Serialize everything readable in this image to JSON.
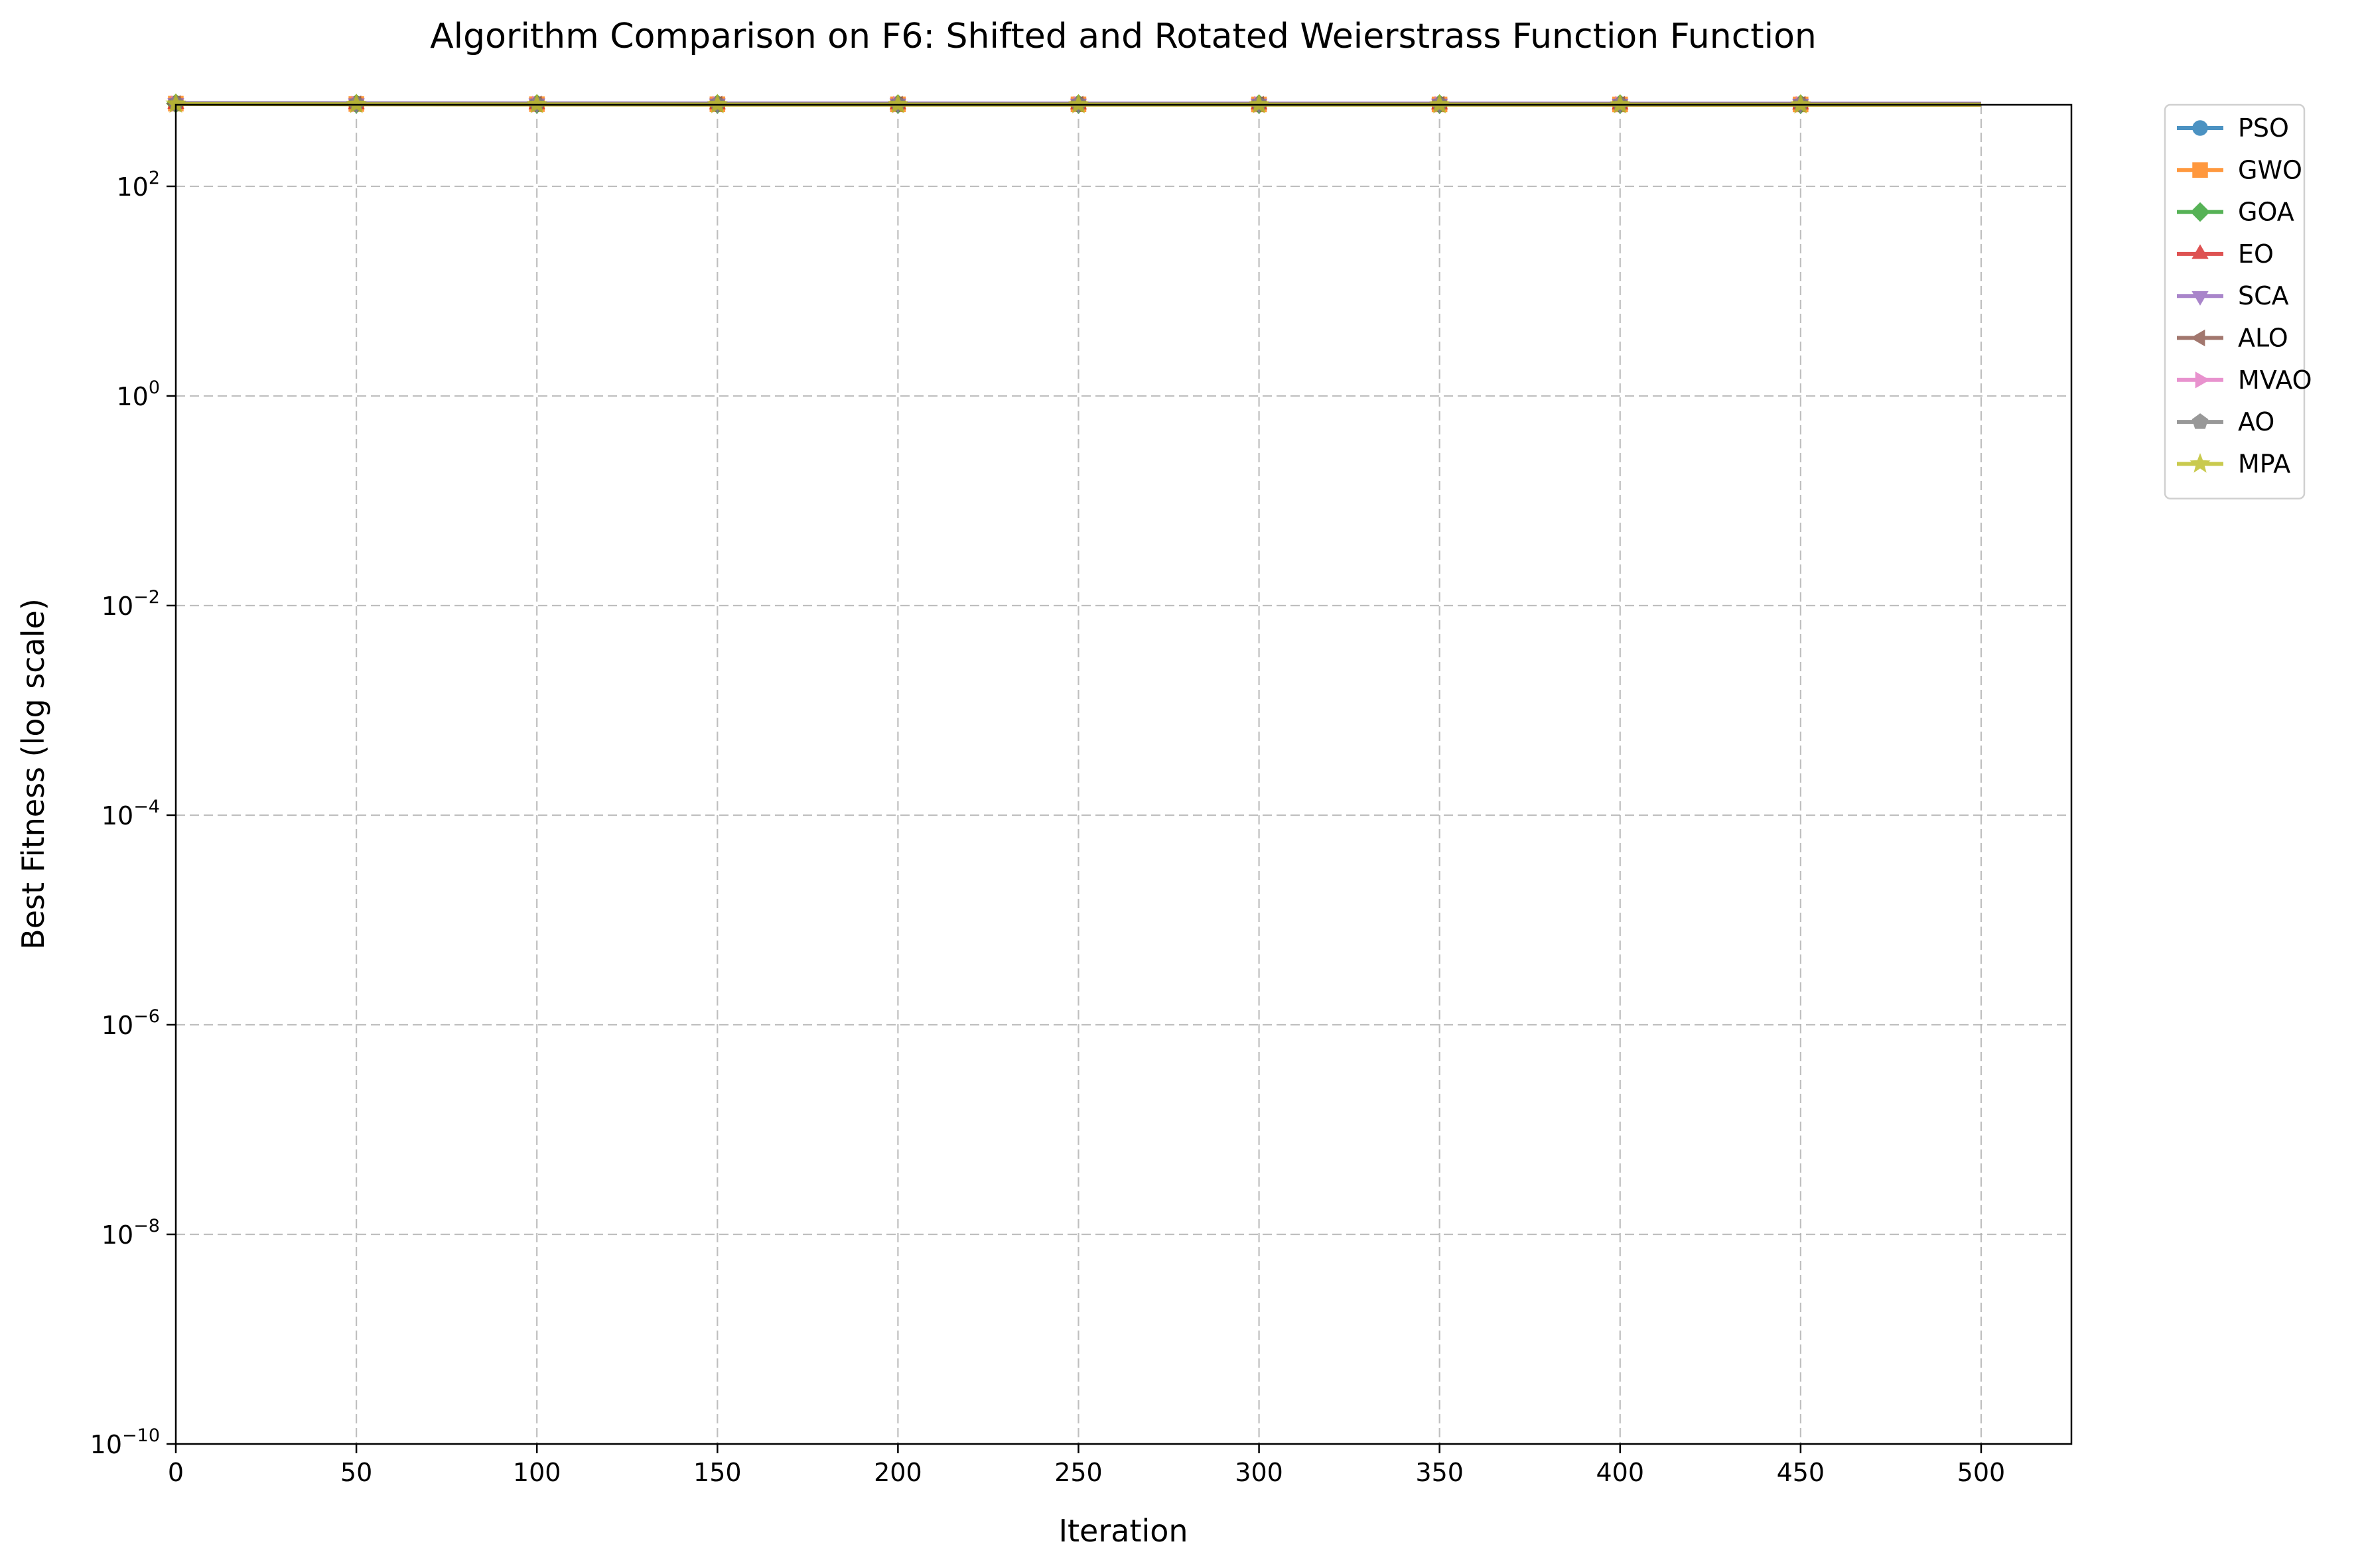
{
  "chart_data": {
    "type": "line",
    "title": "Algorithm Comparison on F6: Shifted and Rotated Weierstrass Function Function",
    "xlabel": "Iteration",
    "ylabel": "Best Fitness (log scale)",
    "xlim": [
      0,
      525
    ],
    "ylim": [
      1e-10,
      600
    ],
    "yscale": "log",
    "grid": true,
    "legend_position": "outside-top-right",
    "x_ticks": [
      0,
      50,
      100,
      150,
      200,
      250,
      300,
      350,
      400,
      450,
      500
    ],
    "x_tick_labels": [
      "0",
      "50",
      "100",
      "150",
      "200",
      "250",
      "300",
      "350",
      "400",
      "450",
      "500"
    ],
    "y_ticks": [
      {
        "value": 1e-10,
        "base": "10",
        "exp": "−10"
      },
      {
        "value": 1e-08,
        "base": "10",
        "exp": "−8"
      },
      {
        "value": 1e-06,
        "base": "10",
        "exp": "−6"
      },
      {
        "value": 0.0001,
        "base": "10",
        "exp": "−4"
      },
      {
        "value": 0.01,
        "base": "10",
        "exp": "−2"
      },
      {
        "value": 1,
        "base": "10",
        "exp": "0"
      },
      {
        "value": 100,
        "base": "10",
        "exp": "2"
      }
    ],
    "x": [
      0,
      50,
      100,
      150,
      200,
      250,
      300,
      350,
      400,
      450,
      500
    ],
    "series": [
      {
        "name": "PSO",
        "color": "#1f77b4",
        "marker": "circle",
        "values": [
          620,
          615,
          612,
          610,
          610,
          608,
          608,
          607,
          607,
          606,
          606
        ]
      },
      {
        "name": "GWO",
        "color": "#ff7f0e",
        "marker": "square",
        "values": [
          615,
          610,
          608,
          607,
          606,
          606,
          605,
          605,
          605,
          605,
          605
        ]
      },
      {
        "name": "GOA",
        "color": "#2ca02c",
        "marker": "diamond",
        "values": [
          618,
          614,
          612,
          611,
          610,
          610,
          609,
          609,
          609,
          608,
          608
        ]
      },
      {
        "name": "EO",
        "color": "#d62728",
        "marker": "triangle-up",
        "values": [
          612,
          608,
          606,
          605,
          605,
          604,
          604,
          604,
          603,
          603,
          603
        ]
      },
      {
        "name": "SCA",
        "color": "#9467bd",
        "marker": "triangle-down",
        "values": [
          622,
          620,
          619,
          618,
          618,
          617,
          617,
          617,
          616,
          616,
          616
        ]
      },
      {
        "name": "ALO",
        "color": "#8c564b",
        "marker": "triangle-left",
        "values": [
          616,
          612,
          610,
          609,
          608,
          608,
          607,
          607,
          607,
          606,
          606
        ]
      },
      {
        "name": "MVAO",
        "color": "#e377c2",
        "marker": "triangle-right",
        "values": [
          614,
          610,
          609,
          608,
          607,
          607,
          606,
          606,
          606,
          606,
          605
        ]
      },
      {
        "name": "AO",
        "color": "#7f7f7f",
        "marker": "pentagon",
        "values": [
          617,
          613,
          611,
          610,
          609,
          609,
          608,
          608,
          608,
          607,
          607
        ]
      },
      {
        "name": "MPA",
        "color": "#bcbd22",
        "marker": "star",
        "values": [
          610,
          606,
          604,
          603,
          603,
          602,
          602,
          602,
          602,
          601,
          601
        ]
      }
    ]
  }
}
